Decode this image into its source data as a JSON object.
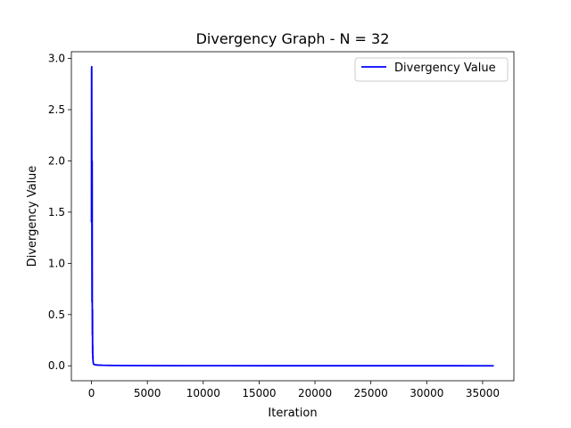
{
  "chart_data": {
    "type": "line",
    "title": "Divergency Graph - N = 32",
    "xlabel": "Iteration",
    "ylabel": "Divergency Value",
    "xlim": [
      -1800,
      37800
    ],
    "ylim": [
      -0.146,
      3.066
    ],
    "xticks": [
      0,
      5000,
      10000,
      15000,
      20000,
      25000,
      30000,
      35000
    ],
    "xtick_labels": [
      "0",
      "5000",
      "10000",
      "15000",
      "20000",
      "25000",
      "30000",
      "35000"
    ],
    "yticks": [
      0.0,
      0.5,
      1.0,
      1.5,
      2.0,
      2.5,
      3.0
    ],
    "ytick_labels": [
      "0.0",
      "0.5",
      "1.0",
      "1.5",
      "2.0",
      "2.5",
      "3.0"
    ],
    "grid": false,
    "legend_position": "upper-right",
    "series": [
      {
        "name": "Divergency Value",
        "color": "#0000ff",
        "x": [
          0,
          10,
          20,
          30,
          40,
          50,
          60,
          70,
          80,
          90,
          100,
          110,
          120,
          130,
          140,
          150,
          160,
          170,
          180,
          190,
          200,
          230,
          260,
          300,
          400,
          600,
          1000,
          2000,
          4000,
          8000,
          16000,
          24000,
          30000,
          36000
        ],
        "y": [
          1.4,
          2.9,
          2.92,
          2.2,
          1.05,
          0.62,
          2.0,
          0.65,
          0.3,
          0.55,
          0.12,
          0.2,
          0.07,
          0.1,
          0.05,
          0.04,
          0.03,
          0.025,
          0.02,
          0.018,
          0.015,
          0.013,
          0.012,
          0.011,
          0.009,
          0.007,
          0.005,
          0.003,
          0.002,
          0.001,
          0.0005,
          0.0003,
          0.0002,
          0.0001
        ]
      }
    ]
  }
}
